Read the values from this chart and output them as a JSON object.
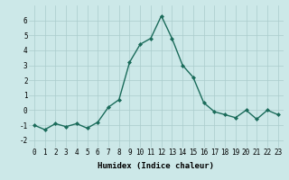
{
  "x": [
    0,
    1,
    2,
    3,
    4,
    5,
    6,
    7,
    8,
    9,
    10,
    11,
    12,
    13,
    14,
    15,
    16,
    17,
    18,
    19,
    20,
    21,
    22,
    23
  ],
  "y": [
    -1.0,
    -1.3,
    -0.9,
    -1.1,
    -0.9,
    -1.2,
    -0.8,
    0.2,
    0.7,
    3.2,
    4.4,
    4.8,
    6.3,
    4.8,
    3.0,
    2.2,
    0.5,
    -0.1,
    -0.3,
    -0.5,
    0.0,
    -0.6,
    0.0,
    -0.3
  ],
  "line_color": "#1a6b5a",
  "marker": "D",
  "marker_size": 2.0,
  "background_color": "#cce8e8",
  "grid_color": "#aacccc",
  "xlabel": "Humidex (Indice chaleur)",
  "xlim": [
    -0.5,
    23.5
  ],
  "ylim": [
    -2.5,
    7.0
  ],
  "yticks": [
    -2,
    -1,
    0,
    1,
    2,
    3,
    4,
    5,
    6
  ],
  "xticks": [
    0,
    1,
    2,
    3,
    4,
    5,
    6,
    7,
    8,
    9,
    10,
    11,
    12,
    13,
    14,
    15,
    16,
    17,
    18,
    19,
    20,
    21,
    22,
    23
  ],
  "tick_fontsize": 5.5,
  "xlabel_fontsize": 6.5,
  "line_width": 1.0
}
